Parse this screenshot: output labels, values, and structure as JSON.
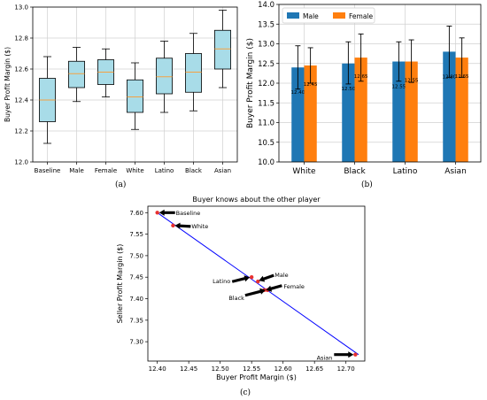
{
  "chart_data": [
    {
      "type": "box",
      "ylabel": "Buyer Profit Margin ($)",
      "ylim": [
        12.0,
        13.0
      ],
      "yticks": [
        "12.0",
        "12.2",
        "12.4",
        "12.6",
        "12.8",
        "13.0"
      ],
      "categories": [
        "Baseline",
        "Male",
        "Female",
        "White",
        "Latino",
        "Black",
        "Asian"
      ],
      "boxes": [
        {
          "whislo": 12.12,
          "q1": 12.26,
          "median": 12.4,
          "q3": 12.54,
          "whishi": 12.68
        },
        {
          "whislo": 12.39,
          "q1": 12.48,
          "median": 12.57,
          "q3": 12.65,
          "whishi": 12.74
        },
        {
          "whislo": 12.42,
          "q1": 12.5,
          "median": 12.58,
          "q3": 12.66,
          "whishi": 12.73
        },
        {
          "whislo": 12.21,
          "q1": 12.32,
          "median": 12.42,
          "q3": 12.53,
          "whishi": 12.64
        },
        {
          "whislo": 12.32,
          "q1": 12.44,
          "median": 12.55,
          "q3": 12.67,
          "whishi": 12.78
        },
        {
          "whislo": 12.33,
          "q1": 12.45,
          "median": 12.58,
          "q3": 12.7,
          "whishi": 12.83
        },
        {
          "whislo": 12.48,
          "q1": 12.6,
          "median": 12.73,
          "q3": 12.85,
          "whishi": 12.98
        }
      ],
      "box_color": "#a8dce8",
      "median_color": "#f5a142",
      "grid": true,
      "caption": "(a)"
    },
    {
      "type": "bar",
      "ylabel": "Buyer Profit Margin ($)",
      "ylim": [
        10.0,
        14.0
      ],
      "yticks": [
        "10.0",
        "10.5",
        "11.0",
        "11.5",
        "12.0",
        "12.5",
        "13.0",
        "13.5",
        "14.0"
      ],
      "categories": [
        "White",
        "Black",
        "Latino",
        "Asian"
      ],
      "series": [
        {
          "name": "Male",
          "color": "#1f77b4",
          "values": [
            12.4,
            12.5,
            12.55,
            12.8
          ],
          "err_low": [
            11.85,
            11.98,
            12.05,
            12.15
          ],
          "err_high": [
            12.95,
            13.05,
            13.05,
            13.45
          ],
          "labels": [
            "12.40",
            "12.50",
            "12.55",
            "12.80"
          ]
        },
        {
          "name": "Female",
          "color": "#ff7f0e",
          "values": [
            12.45,
            12.65,
            12.55,
            12.65
          ],
          "err_low": [
            12.0,
            12.05,
            12.02,
            12.15
          ],
          "err_high": [
            12.9,
            13.25,
            13.1,
            13.15
          ],
          "labels": [
            "12.45",
            "12.65",
            "12.55",
            "12.65"
          ]
        }
      ],
      "legend": "top-left",
      "grid": true,
      "caption": "(b)"
    },
    {
      "type": "scatter",
      "title": "Buyer knows about the other player",
      "xlabel": "Buyer Profit Margin ($)",
      "ylabel": "Seller Profit Margin ($)",
      "xlim": [
        12.385,
        12.73
      ],
      "ylim": [
        7.255,
        7.615
      ],
      "xticks": [
        "12.40",
        "12.45",
        "12.50",
        "12.55",
        "12.60",
        "12.65",
        "12.70"
      ],
      "yticks": [
        "7.30",
        "7.35",
        "7.40",
        "7.45",
        "7.50",
        "7.55",
        "7.60"
      ],
      "line": {
        "x": [
          12.4,
          12.72
        ],
        "y": [
          7.6,
          7.27
        ],
        "color": "#0000ff"
      },
      "points": [
        {
          "label": "Baseline",
          "x": 12.4,
          "y": 7.6
        },
        {
          "label": "White",
          "x": 12.425,
          "y": 7.57
        },
        {
          "label": "Latino",
          "x": 12.55,
          "y": 7.45
        },
        {
          "label": "Male",
          "x": 12.56,
          "y": 7.44
        },
        {
          "label": "Female",
          "x": 12.57,
          "y": 7.42
        },
        {
          "label": "Black",
          "x": 12.575,
          "y": 7.42
        },
        {
          "label": "Asian",
          "x": 12.715,
          "y": 7.27
        }
      ],
      "point_color": "#e8312f",
      "caption": "(c)"
    }
  ]
}
